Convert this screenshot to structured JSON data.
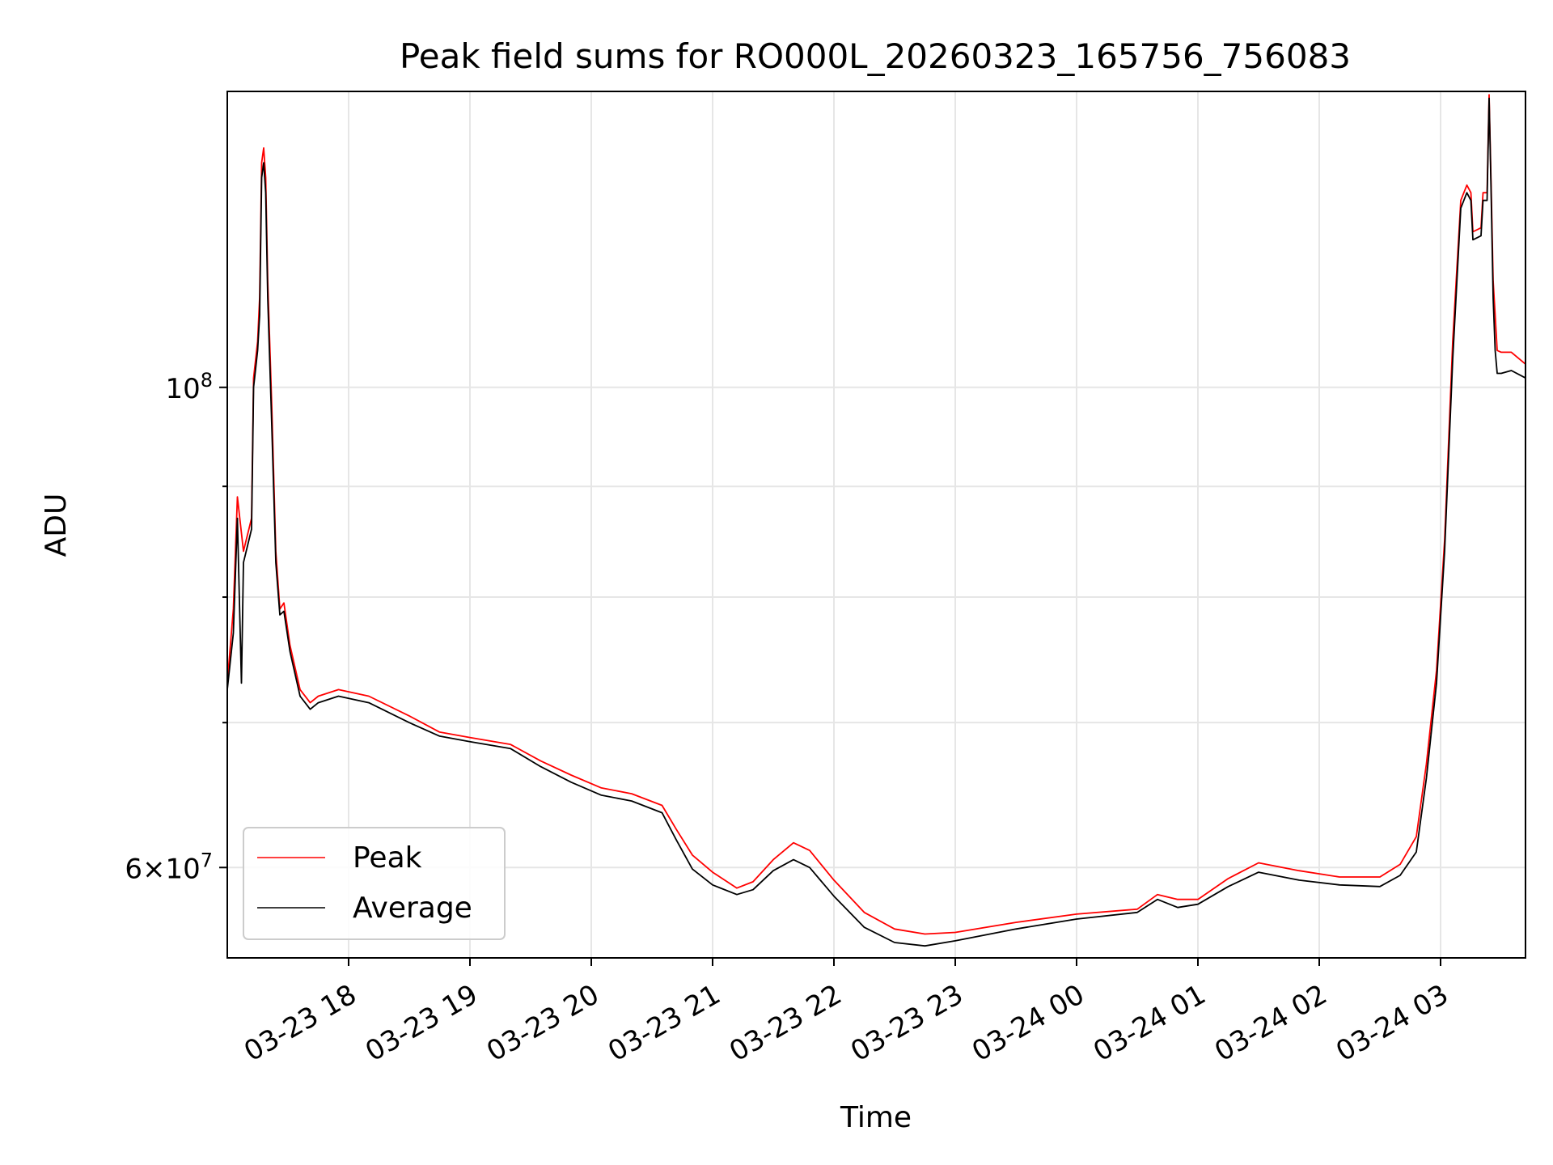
{
  "chart_data": {
    "type": "line",
    "title": "Peak field sums for RO000L_20260323_165756_756083",
    "xlabel": "Time",
    "ylabel": "ADU",
    "xaxis": {
      "kind": "datetime",
      "range": [
        "2026-03-23 17:00",
        "2026-03-24 03:42"
      ],
      "ticks": [
        {
          "t": "2026-03-23 18:00",
          "label": "03-23 18"
        },
        {
          "t": "2026-03-23 19:00",
          "label": "03-23 19"
        },
        {
          "t": "2026-03-23 20:00",
          "label": "03-23 20"
        },
        {
          "t": "2026-03-23 21:00",
          "label": "03-23 21"
        },
        {
          "t": "2026-03-23 22:00",
          "label": "03-23 22"
        },
        {
          "t": "2026-03-23 23:00",
          "label": "03-23 23"
        },
        {
          "t": "2026-03-24 00:00",
          "label": "03-24 00"
        },
        {
          "t": "2026-03-24 01:00",
          "label": "03-24 01"
        },
        {
          "t": "2026-03-24 02:00",
          "label": "03-24 02"
        },
        {
          "t": "2026-03-24 03:00",
          "label": "03-24 03"
        }
      ]
    },
    "yaxis": {
      "scale": "log",
      "ylim": [
        54500000,
        137000000
      ],
      "major_ticks": [
        {
          "value": 100000000,
          "base": "10",
          "exp": "8",
          "coef": ""
        },
        {
          "value": 60000000,
          "base": "10",
          "exp": "7",
          "coef": "6×"
        }
      ],
      "grid_values": [
        60000000,
        70000000,
        80000000,
        90000000,
        100000000
      ]
    },
    "grid": true,
    "legend": {
      "position": "lower-left",
      "entries": [
        "Peak",
        "Average"
      ]
    },
    "series": [
      {
        "name": "Peak",
        "color": "#ff0000",
        "points": [
          [
            "2026-03-23 17:00",
            73000000
          ],
          [
            "2026-03-23 17:03",
            79000000
          ],
          [
            "2026-03-23 17:05",
            89000000
          ],
          [
            "2026-03-23 17:08",
            84000000
          ],
          [
            "2026-03-23 17:12",
            87000000
          ],
          [
            "2026-03-23 17:13",
            101000000
          ],
          [
            "2026-03-23 17:15",
            105000000
          ],
          [
            "2026-03-23 17:16",
            110000000
          ],
          [
            "2026-03-23 17:17",
            127000000
          ],
          [
            "2026-03-23 17:18",
            129000000
          ],
          [
            "2026-03-23 17:19",
            125000000
          ],
          [
            "2026-03-23 17:20",
            112000000
          ],
          [
            "2026-03-23 17:22",
            98000000
          ],
          [
            "2026-03-23 17:24",
            84000000
          ],
          [
            "2026-03-23 17:26",
            79000000
          ],
          [
            "2026-03-23 17:28",
            79500000
          ],
          [
            "2026-03-23 17:31",
            76000000
          ],
          [
            "2026-03-23 17:36",
            72500000
          ],
          [
            "2026-03-23 17:41",
            71500000
          ],
          [
            "2026-03-23 17:45",
            72000000
          ],
          [
            "2026-03-23 17:55",
            72500000
          ],
          [
            "2026-03-23 18:10",
            72000000
          ],
          [
            "2026-03-23 18:30",
            70500000
          ],
          [
            "2026-03-23 18:45",
            69300000
          ],
          [
            "2026-03-23 19:00",
            68900000
          ],
          [
            "2026-03-23 19:20",
            68400000
          ],
          [
            "2026-03-23 19:35",
            67200000
          ],
          [
            "2026-03-23 19:50",
            66200000
          ],
          [
            "2026-03-23 20:05",
            65300000
          ],
          [
            "2026-03-23 20:20",
            64900000
          ],
          [
            "2026-03-23 20:35",
            64100000
          ],
          [
            "2026-03-23 20:42",
            62500000
          ],
          [
            "2026-03-23 20:50",
            60800000
          ],
          [
            "2026-03-23 21:00",
            59700000
          ],
          [
            "2026-03-23 21:12",
            58700000
          ],
          [
            "2026-03-23 21:20",
            59100000
          ],
          [
            "2026-03-23 21:30",
            60500000
          ],
          [
            "2026-03-23 21:40",
            61600000
          ],
          [
            "2026-03-23 21:48",
            61100000
          ],
          [
            "2026-03-23 22:00",
            59200000
          ],
          [
            "2026-03-23 22:15",
            57200000
          ],
          [
            "2026-03-23 22:30",
            56200000
          ],
          [
            "2026-03-23 22:45",
            55900000
          ],
          [
            "2026-03-23 23:00",
            56000000
          ],
          [
            "2026-03-23 23:30",
            56600000
          ],
          [
            "2026-03-24 00:00",
            57100000
          ],
          [
            "2026-03-24 00:30",
            57400000
          ],
          [
            "2026-03-24 00:40",
            58300000
          ],
          [
            "2026-03-24 00:50",
            58000000
          ],
          [
            "2026-03-24 01:00",
            58000000
          ],
          [
            "2026-03-24 01:15",
            59300000
          ],
          [
            "2026-03-24 01:30",
            60300000
          ],
          [
            "2026-03-24 01:50",
            59800000
          ],
          [
            "2026-03-24 02:10",
            59400000
          ],
          [
            "2026-03-24 02:30",
            59400000
          ],
          [
            "2026-03-24 02:40",
            60200000
          ],
          [
            "2026-03-24 02:48",
            62000000
          ],
          [
            "2026-03-24 02:53",
            67000000
          ],
          [
            "2026-03-24 02:58",
            74000000
          ],
          [
            "2026-03-24 03:02",
            85000000
          ],
          [
            "2026-03-24 03:06",
            105000000
          ],
          [
            "2026-03-24 03:10",
            122000000
          ],
          [
            "2026-03-24 03:13",
            124000000
          ],
          [
            "2026-03-24 03:15",
            123000000
          ],
          [
            "2026-03-24 03:16",
            118000000
          ],
          [
            "2026-03-24 03:20",
            118500000
          ],
          [
            "2026-03-24 03:21",
            123000000
          ],
          [
            "2026-03-24 03:23",
            123000000
          ],
          [
            "2026-03-24 03:24",
            136500000
          ],
          [
            "2026-03-24 03:25",
            124000000
          ],
          [
            "2026-03-24 03:26",
            112000000
          ],
          [
            "2026-03-24 03:27",
            108000000
          ],
          [
            "2026-03-24 03:28",
            104000000
          ],
          [
            "2026-03-24 03:30",
            103800000
          ],
          [
            "2026-03-24 03:35",
            103800000
          ],
          [
            "2026-03-24 03:42",
            102500000
          ]
        ]
      },
      {
        "name": "Average",
        "color": "#000000",
        "points": [
          [
            "2026-03-23 17:00",
            72500000
          ],
          [
            "2026-03-23 17:03",
            77000000
          ],
          [
            "2026-03-23 17:05",
            87000000
          ],
          [
            "2026-03-23 17:07",
            73000000
          ],
          [
            "2026-03-23 17:08",
            83000000
          ],
          [
            "2026-03-23 17:12",
            86000000
          ],
          [
            "2026-03-23 17:13",
            100000000
          ],
          [
            "2026-03-23 17:15",
            104000000
          ],
          [
            "2026-03-23 17:16",
            108000000
          ],
          [
            "2026-03-23 17:17",
            125000000
          ],
          [
            "2026-03-23 17:18",
            127000000
          ],
          [
            "2026-03-23 17:19",
            123000000
          ],
          [
            "2026-03-23 17:20",
            110000000
          ],
          [
            "2026-03-23 17:22",
            96000000
          ],
          [
            "2026-03-23 17:24",
            83000000
          ],
          [
            "2026-03-23 17:26",
            78500000
          ],
          [
            "2026-03-23 17:28",
            78800000
          ],
          [
            "2026-03-23 17:31",
            75500000
          ],
          [
            "2026-03-23 17:36",
            72000000
          ],
          [
            "2026-03-23 17:41",
            71000000
          ],
          [
            "2026-03-23 17:45",
            71500000
          ],
          [
            "2026-03-23 17:55",
            72000000
          ],
          [
            "2026-03-23 18:10",
            71500000
          ],
          [
            "2026-03-23 18:30",
            70000000
          ],
          [
            "2026-03-23 18:45",
            69000000
          ],
          [
            "2026-03-23 19:00",
            68600000
          ],
          [
            "2026-03-23 19:20",
            68100000
          ],
          [
            "2026-03-23 19:35",
            66800000
          ],
          [
            "2026-03-23 19:50",
            65700000
          ],
          [
            "2026-03-23 20:05",
            64800000
          ],
          [
            "2026-03-23 20:20",
            64400000
          ],
          [
            "2026-03-23 20:35",
            63600000
          ],
          [
            "2026-03-23 20:42",
            61800000
          ],
          [
            "2026-03-23 20:50",
            59900000
          ],
          [
            "2026-03-23 21:00",
            58900000
          ],
          [
            "2026-03-23 21:12",
            58300000
          ],
          [
            "2026-03-23 21:20",
            58600000
          ],
          [
            "2026-03-23 21:30",
            59800000
          ],
          [
            "2026-03-23 21:40",
            60500000
          ],
          [
            "2026-03-23 21:48",
            60000000
          ],
          [
            "2026-03-23 22:00",
            58200000
          ],
          [
            "2026-03-23 22:15",
            56300000
          ],
          [
            "2026-03-23 22:30",
            55400000
          ],
          [
            "2026-03-23 22:45",
            55200000
          ],
          [
            "2026-03-23 23:00",
            55500000
          ],
          [
            "2026-03-23 23:30",
            56200000
          ],
          [
            "2026-03-24 00:00",
            56800000
          ],
          [
            "2026-03-24 00:30",
            57200000
          ],
          [
            "2026-03-24 00:40",
            58000000
          ],
          [
            "2026-03-24 00:50",
            57500000
          ],
          [
            "2026-03-24 01:00",
            57700000
          ],
          [
            "2026-03-24 01:15",
            58800000
          ],
          [
            "2026-03-24 01:30",
            59700000
          ],
          [
            "2026-03-24 01:50",
            59200000
          ],
          [
            "2026-03-24 02:10",
            58900000
          ],
          [
            "2026-03-24 02:30",
            58800000
          ],
          [
            "2026-03-24 02:40",
            59500000
          ],
          [
            "2026-03-24 02:48",
            61000000
          ],
          [
            "2026-03-24 02:53",
            66000000
          ],
          [
            "2026-03-24 02:58",
            73000000
          ],
          [
            "2026-03-24 03:02",
            84000000
          ],
          [
            "2026-03-24 03:06",
            103000000
          ],
          [
            "2026-03-24 03:10",
            121000000
          ],
          [
            "2026-03-24 03:13",
            123000000
          ],
          [
            "2026-03-24 03:15",
            122000000
          ],
          [
            "2026-03-24 03:16",
            117000000
          ],
          [
            "2026-03-24 03:20",
            117500000
          ],
          [
            "2026-03-24 03:21",
            122000000
          ],
          [
            "2026-03-24 03:23",
            122000000
          ],
          [
            "2026-03-24 03:24",
            136000000
          ],
          [
            "2026-03-24 03:25",
            123000000
          ],
          [
            "2026-03-24 03:26",
            110000000
          ],
          [
            "2026-03-24 03:27",
            104000000
          ],
          [
            "2026-03-24 03:28",
            101500000
          ],
          [
            "2026-03-24 03:30",
            101500000
          ],
          [
            "2026-03-24 03:35",
            101800000
          ],
          [
            "2026-03-24 03:42",
            101000000
          ]
        ]
      }
    ]
  }
}
